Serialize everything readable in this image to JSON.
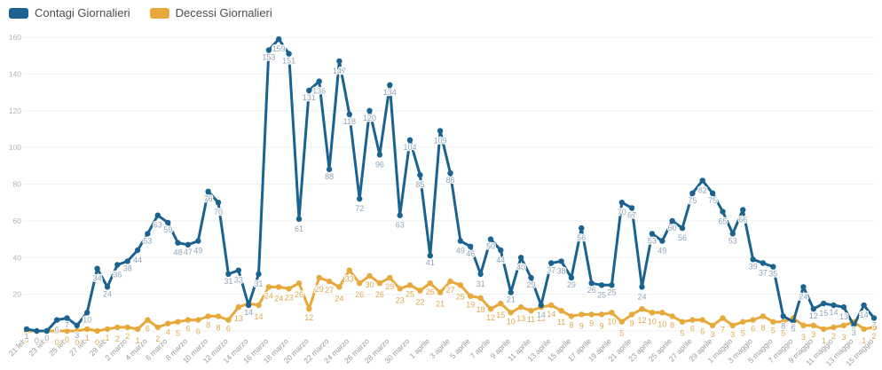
{
  "legend": {
    "items": [
      {
        "label": "Contagi Giornalieri",
        "color": "#1a6390"
      },
      {
        "label": "Decessi Giornalieri",
        "color": "#e8a93c"
      }
    ]
  },
  "chart_data": {
    "type": "line",
    "title": "",
    "xlabel": "",
    "ylabel": "",
    "ylim": [
      0,
      160
    ],
    "y_ticks": [
      20,
      40,
      60,
      80,
      100,
      120,
      140,
      160
    ],
    "grid": true,
    "legend_position": "top-left",
    "x_tick_every": 2,
    "x_tick_labels": [
      "21 feb",
      "23 feb",
      "25 feb",
      "27 feb",
      "29 feb",
      "2 marzo",
      "4 marzo",
      "6 marzo",
      "8 marzo",
      "10 marzo",
      "12 marzo",
      "14 marzo",
      "16 marzo",
      "18 marzo",
      "20 marzo",
      "22 marzo",
      "24 marzo",
      "26 marzo",
      "28 marzo",
      "30 marzo",
      "1 aprile",
      "3 aprile",
      "5 aprile",
      "7 aprile",
      "9 aprile",
      "11 aprile",
      "13 aprile",
      "15 aprile",
      "17 aprile",
      "19 aprile",
      "21 aprile",
      "23 aprile",
      "25 aprile",
      "27 aprile",
      "29 aprile",
      "1 maggio",
      "3 maggio",
      "5 maggio",
      "7 maggio",
      "9 maggio",
      "11 maggio",
      "13 maggio",
      "15 maggio"
    ],
    "series": [
      {
        "name": "Contagi Giornalieri",
        "color": "#1a6390",
        "label_color": "#8fa5ba",
        "values": [
          1,
          0,
          0,
          6,
          7,
          3,
          10,
          34,
          24,
          36,
          38,
          44,
          53,
          63,
          59,
          48,
          47,
          49,
          76,
          70,
          31,
          33,
          14,
          31,
          153,
          159,
          151,
          61,
          131,
          136,
          88,
          147,
          118,
          72,
          120,
          96,
          134,
          63,
          104,
          85,
          41,
          109,
          86,
          49,
          46,
          31,
          50,
          44,
          21,
          40,
          29,
          14,
          37,
          38,
          29,
          56,
          26,
          25,
          25,
          70,
          67,
          24,
          53,
          49,
          60,
          56,
          75,
          82,
          75,
          65,
          53,
          66,
          39,
          37,
          35,
          8,
          5,
          24,
          12,
          15,
          14,
          13,
          3,
          14,
          7
        ]
      },
      {
        "name": "Decessi Giornalieri",
        "color": "#e8a93c",
        "label_color": "#dba94f",
        "values": [
          0,
          0,
          0,
          0,
          0,
          0,
          1,
          0,
          1,
          2,
          2,
          1,
          6,
          2,
          4,
          5,
          6,
          6,
          8,
          8,
          6,
          13,
          15,
          14,
          24,
          24,
          23,
          26,
          12,
          29,
          27,
          24,
          33,
          26,
          30,
          26,
          29,
          23,
          25,
          22,
          26,
          21,
          27,
          25,
          19,
          18,
          12,
          15,
          10,
          13,
          11,
          13,
          14,
          11,
          8,
          9,
          9,
          9,
          10,
          5,
          9,
          12,
          10,
          10,
          8,
          5,
          6,
          6,
          3,
          7,
          3,
          5,
          6,
          8,
          5,
          5,
          7,
          3,
          3,
          1,
          2,
          3,
          5,
          1,
          2
        ]
      }
    ]
  },
  "axis": {
    "y_label_color": "#b3b3b3",
    "x_label_color": "#9a9a9a",
    "grid_color": "#f0f0f0"
  }
}
